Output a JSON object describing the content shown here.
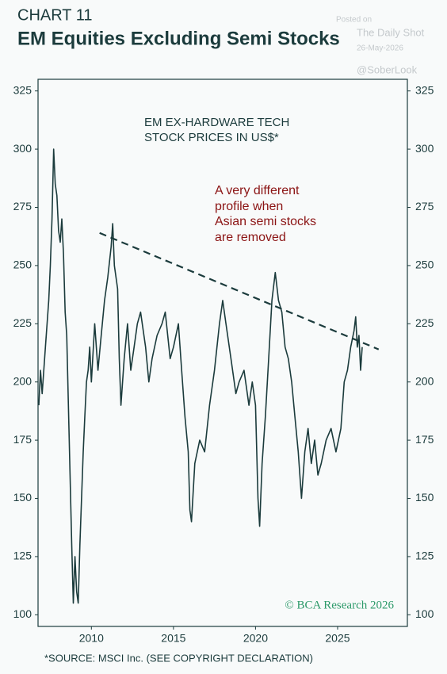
{
  "chart_data": {
    "type": "line",
    "chart_number": "CHART 11",
    "title": "EM Equities Excluding Semi Stocks",
    "watermark": [
      "Posted on",
      "The Daily Shot",
      "26-May-2026",
      "@SoberLook"
    ],
    "series_label": [
      "EM EX-HARDWARE TECH",
      "STOCK PRICES IN US$*"
    ],
    "annotation": [
      "A very different",
      "profile when",
      "Asian semi stocks",
      "are removed"
    ],
    "credit": "© BCA Research 2026",
    "source": "*SOURCE: MSCI Inc. (SEE COPYRIGHT DECLARATION)",
    "x": [
      2006.8,
      2006.9,
      2007.0,
      2007.2,
      2007.4,
      2007.5,
      2007.6,
      2007.7,
      2007.8,
      2007.9,
      2008.0,
      2008.1,
      2008.2,
      2008.3,
      2008.4,
      2008.5,
      2008.6,
      2008.7,
      2008.8,
      2008.9,
      2009.0,
      2009.1,
      2009.2,
      2009.3,
      2009.4,
      2009.5,
      2009.6,
      2009.7,
      2009.8,
      2009.9,
      2010.0,
      2010.2,
      2010.4,
      2010.6,
      2010.8,
      2011.0,
      2011.2,
      2011.3,
      2011.4,
      2011.6,
      2011.7,
      2011.8,
      2012.0,
      2012.2,
      2012.4,
      2012.6,
      2012.8,
      2013.0,
      2013.3,
      2013.5,
      2013.7,
      2014.0,
      2014.3,
      2014.5,
      2014.8,
      2015.0,
      2015.3,
      2015.5,
      2015.7,
      2015.9,
      2016.0,
      2016.1,
      2016.3,
      2016.6,
      2016.9,
      2017.2,
      2017.5,
      2017.8,
      2018.0,
      2018.2,
      2018.5,
      2018.8,
      2019.0,
      2019.3,
      2019.6,
      2019.8,
      2020.0,
      2020.15,
      2020.25,
      2020.4,
      2020.6,
      2020.8,
      2021.0,
      2021.2,
      2021.4,
      2021.6,
      2021.8,
      2022.0,
      2022.2,
      2022.4,
      2022.6,
      2022.8,
      2023.0,
      2023.2,
      2023.4,
      2023.6,
      2023.8,
      2024.0,
      2024.3,
      2024.6,
      2024.9,
      2025.2,
      2025.4,
      2025.6,
      2025.8,
      2026.0,
      2026.1,
      2026.2,
      2026.3,
      2026.4,
      2026.5
    ],
    "series": [
      {
        "name": "EM ex-hardware tech",
        "color": "#1b3b3c",
        "values": [
          190,
          205,
          195,
          215,
          235,
          250,
          270,
          300,
          285,
          280,
          265,
          260,
          270,
          255,
          230,
          220,
          190,
          160,
          130,
          105,
          125,
          110,
          105,
          130,
          150,
          170,
          185,
          200,
          205,
          215,
          200,
          225,
          205,
          220,
          235,
          245,
          258,
          268,
          250,
          240,
          210,
          190,
          210,
          225,
          205,
          215,
          225,
          230,
          215,
          200,
          210,
          220,
          225,
          230,
          210,
          215,
          225,
          205,
          185,
          170,
          145,
          140,
          165,
          175,
          170,
          190,
          205,
          225,
          235,
          225,
          210,
          195,
          200,
          205,
          190,
          200,
          190,
          150,
          138,
          165,
          185,
          210,
          235,
          247,
          235,
          230,
          215,
          210,
          200,
          185,
          170,
          150,
          170,
          180,
          165,
          175,
          160,
          165,
          175,
          180,
          170,
          180,
          200,
          205,
          215,
          222,
          228,
          215,
          220,
          205,
          215
        ]
      }
    ],
    "trendline": {
      "x": [
        2010.5,
        2027.5
      ],
      "y": [
        264,
        214
      ],
      "color": "#1b3b3c"
    },
    "xlim": [
      2006.75,
      2029.25
    ],
    "ylim": [
      95,
      330
    ],
    "xticks": [
      2010,
      2015,
      2020,
      2025
    ],
    "yticks": [
      100,
      125,
      150,
      175,
      200,
      225,
      250,
      275,
      300,
      325
    ]
  }
}
